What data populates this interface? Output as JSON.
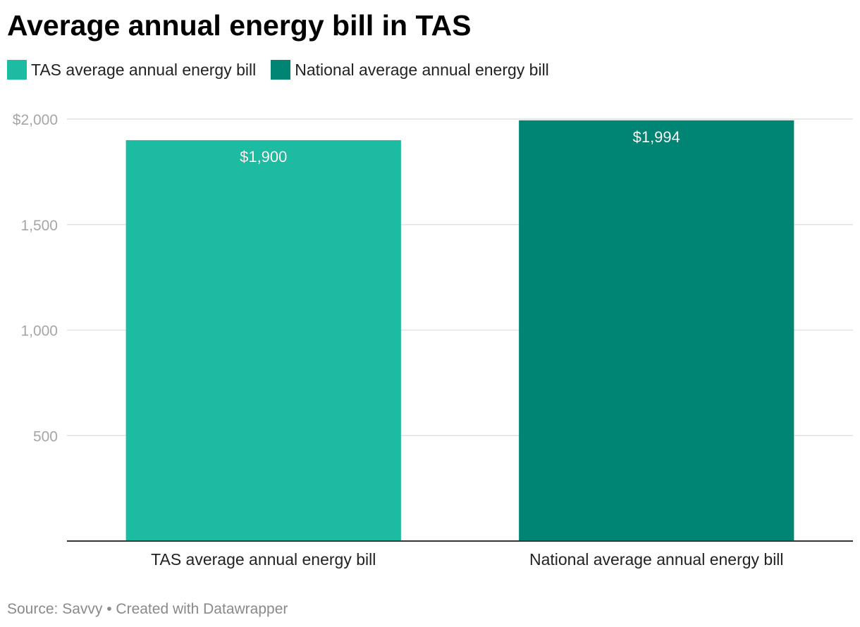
{
  "title": "Average annual energy bill in TAS",
  "legend": [
    {
      "label": "TAS average annual energy bill",
      "color": "#1ebba3"
    },
    {
      "label": "National average annual energy bill",
      "color": "#008575"
    }
  ],
  "chart_data": {
    "type": "bar",
    "categories": [
      "TAS average annual energy bill",
      "National average annual energy bill"
    ],
    "values": [
      1900,
      1994
    ],
    "value_labels": [
      "$1,900",
      "$1,994"
    ],
    "colors": [
      "#1ebba3",
      "#008575"
    ],
    "ylim": [
      0,
      2000
    ],
    "yticks": [
      {
        "value": 2000,
        "label": "$2,000"
      },
      {
        "value": 1500,
        "label": "1,500"
      },
      {
        "value": 1000,
        "label": "1,000"
      },
      {
        "value": 500,
        "label": "500"
      }
    ],
    "grid": true,
    "legend_position": "top-left"
  },
  "footer": {
    "source": "Source: Savvy • Created with Datawrapper"
  }
}
